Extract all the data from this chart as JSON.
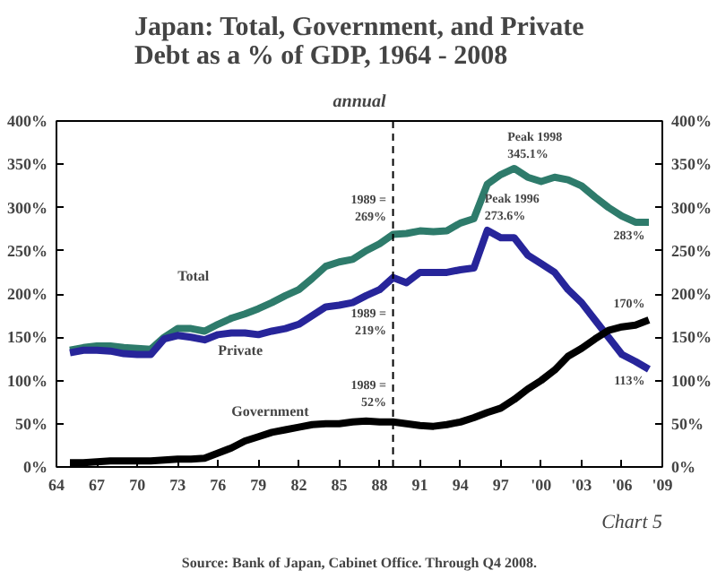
{
  "chart_data": {
    "type": "line",
    "title": "Japan: Total, Government, and Private Debt as a % of GDP, 1964 - 2008",
    "subtitle": "annual",
    "x": [
      1965,
      1966,
      1967,
      1968,
      1969,
      1970,
      1971,
      1972,
      1973,
      1974,
      1975,
      1976,
      1977,
      1978,
      1979,
      1980,
      1981,
      1982,
      1983,
      1984,
      1985,
      1986,
      1987,
      1988,
      1989,
      1990,
      1991,
      1992,
      1993,
      1994,
      1995,
      1996,
      1997,
      1998,
      1999,
      2000,
      2001,
      2002,
      2003,
      2004,
      2005,
      2006,
      2007,
      2008
    ],
    "series": [
      {
        "name": "Total",
        "color": "#2e7b6b",
        "values": [
          135,
          138,
          140,
          140,
          138,
          137,
          136,
          150,
          160,
          160,
          157,
          165,
          172,
          177,
          183,
          190,
          198,
          205,
          218,
          232,
          237,
          240,
          250,
          258,
          269,
          270,
          273,
          272,
          273,
          282,
          287,
          327,
          338,
          345.1,
          335,
          330,
          335,
          332,
          325,
          312,
          300,
          290,
          283,
          283
        ]
      },
      {
        "name": "Private",
        "color": "#27259a",
        "values": [
          132,
          135,
          135,
          134,
          131,
          130,
          130,
          148,
          152,
          150,
          147,
          153,
          155,
          155,
          153,
          157,
          160,
          165,
          175,
          185,
          187,
          190,
          198,
          205,
          219,
          213,
          225,
          225,
          225,
          228,
          230,
          273.6,
          265,
          265,
          245,
          235,
          225,
          205,
          190,
          170,
          150,
          130,
          122,
          113
        ]
      },
      {
        "name": "Government",
        "color": "#000000",
        "values": [
          5,
          5,
          6,
          7,
          7,
          7,
          7,
          8,
          9,
          9,
          10,
          16,
          22,
          30,
          35,
          40,
          43,
          46,
          49,
          50,
          50,
          52,
          53,
          52,
          52,
          50,
          48,
          47,
          49,
          52,
          57,
          63,
          68,
          78,
          90,
          100,
          112,
          128,
          137,
          148,
          158,
          162,
          164,
          170
        ]
      }
    ],
    "xlim": [
      1964,
      2009
    ],
    "xticks": [
      {
        "value": 1964,
        "label": "64"
      },
      {
        "value": 1967,
        "label": "67"
      },
      {
        "value": 1970,
        "label": "70"
      },
      {
        "value": 1973,
        "label": "73"
      },
      {
        "value": 1976,
        "label": "76"
      },
      {
        "value": 1979,
        "label": "79"
      },
      {
        "value": 1982,
        "label": "82"
      },
      {
        "value": 1985,
        "label": "85"
      },
      {
        "value": 1988,
        "label": "88"
      },
      {
        "value": 1991,
        "label": "91"
      },
      {
        "value": 1994,
        "label": "94"
      },
      {
        "value": 1997,
        "label": "97"
      },
      {
        "value": 2000,
        "label": "'00"
      },
      {
        "value": 2003,
        "label": "'03"
      },
      {
        "value": 2006,
        "label": "'06"
      },
      {
        "value": 2009,
        "label": "'09"
      }
    ],
    "ylim": [
      0,
      400
    ],
    "yticks": [
      {
        "value": 0,
        "label": "0%"
      },
      {
        "value": 50,
        "label": "50%"
      },
      {
        "value": 100,
        "label": "100%"
      },
      {
        "value": 150,
        "label": "150%"
      },
      {
        "value": 200,
        "label": "200%"
      },
      {
        "value": 250,
        "label": "250%"
      },
      {
        "value": 300,
        "label": "300%"
      },
      {
        "value": 350,
        "label": "350%"
      },
      {
        "value": 400,
        "label": "400%"
      }
    ],
    "y2lim": [
      0,
      400
    ],
    "y2ticks": [
      {
        "value": 0,
        "label": "0%"
      },
      {
        "value": 50,
        "label": "50%"
      },
      {
        "value": 100,
        "label": "100%"
      },
      {
        "value": 150,
        "label": "150%"
      },
      {
        "value": 200,
        "label": "200%"
      },
      {
        "value": 250,
        "label": "250%"
      },
      {
        "value": 300,
        "label": "300%"
      },
      {
        "value": 350,
        "label": "350%"
      },
      {
        "value": 400,
        "label": "400%"
      }
    ],
    "ref_lines": [
      {
        "axis": "x",
        "value": 1989,
        "line_style": "dashed",
        "color": "#000000"
      }
    ],
    "annotations": [
      {
        "text": "1989 = 269%",
        "x": 1989,
        "y": 269
      },
      {
        "text": "1989 = 219%",
        "x": 1989,
        "y": 219
      },
      {
        "text": "1989 = 52%",
        "x": 1989,
        "y": 52
      },
      {
        "text": "Peak 1998 345.1%",
        "x": 1998,
        "y": 345.1
      },
      {
        "text": "Peak 1996 273.6%",
        "x": 1996,
        "y": 273.6
      },
      {
        "text": "283%",
        "x": 2008,
        "y": 283
      },
      {
        "text": "170%",
        "x": 2008,
        "y": 170
      },
      {
        "text": "113%",
        "x": 2008,
        "y": 113
      },
      "Source: Bank of Japan, Cabinet Office. Through Q4 2008.",
      "Chart 5"
    ],
    "grid": false,
    "line_style": "solid",
    "marker": "none"
  }
}
